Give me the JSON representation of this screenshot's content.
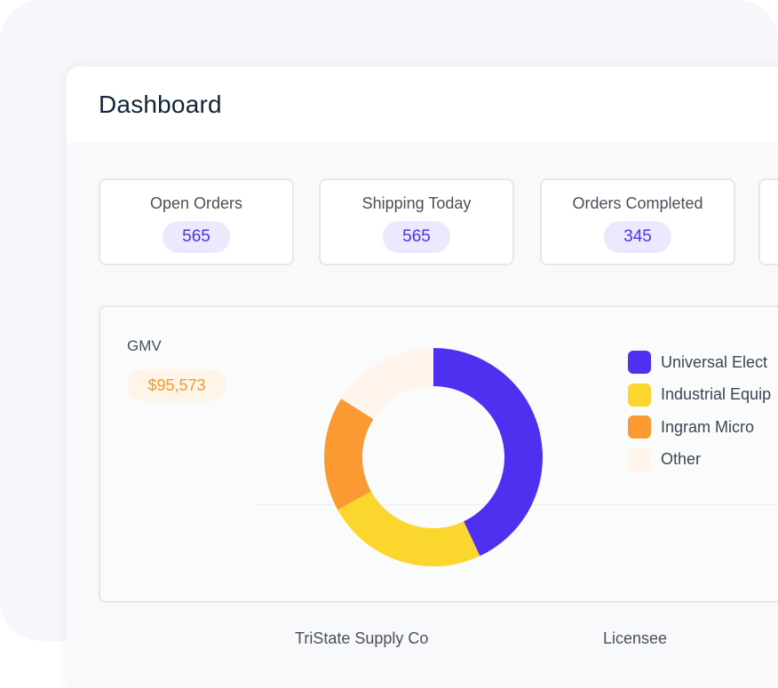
{
  "header": {
    "title": "Dashboard"
  },
  "stats": [
    {
      "label": "Open Orders",
      "value": "565"
    },
    {
      "label": "Shipping Today",
      "value": "565"
    },
    {
      "label": "Orders Completed",
      "value": "345"
    }
  ],
  "gmv": {
    "label": "GMV",
    "value": "$95,573"
  },
  "chart_data": {
    "type": "pie",
    "donut": true,
    "categories": [
      "Universal Elect",
      "Industrial Equip",
      "Ingram Micro",
      "Other"
    ],
    "values": [
      43,
      24,
      17,
      16
    ],
    "colors": [
      "#4f2ff0",
      "#fbd72e",
      "#fb9a32",
      "#fff5ec"
    ]
  },
  "bottom": {
    "col1": "TriState Supply Co",
    "col2": "Licensee"
  }
}
